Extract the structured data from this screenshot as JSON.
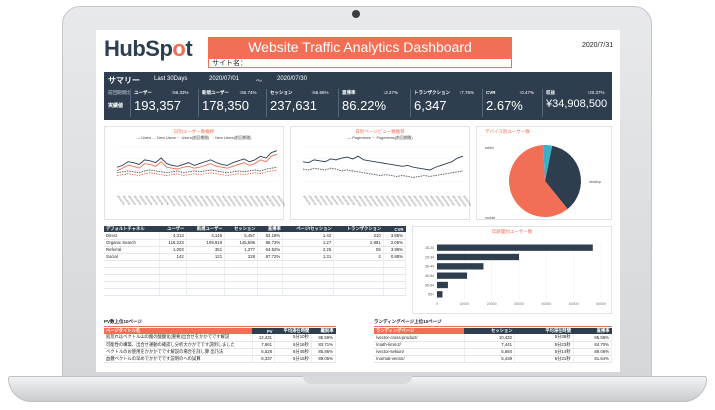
{
  "header": {
    "logo": "HubSpot",
    "logo_pre": "HubSp",
    "logo_o": "o",
    "logo_post": "t",
    "title": "Website Traffic Analytics Dashboard",
    "date": "2020/7/31",
    "site_label": "サイト名："
  },
  "summary": {
    "heading": "サマリー",
    "range": "Last 30Days",
    "from": "2020/07/01",
    "tilde": "〜",
    "to": "2020/07/30",
    "prev_label": "前回期間比",
    "actual_label": "実績値",
    "kpis": [
      {
        "name": "ユーザー",
        "change": "↑56.33%",
        "value": "193,357"
      },
      {
        "name": "新規ユーザー",
        "change": "↑55.74%",
        "value": "178,350"
      },
      {
        "name": "セッション",
        "change": "↑55.66%",
        "value": "237,631"
      },
      {
        "name": "直帰率",
        "change": "↓2.27%",
        "value": "86.22%"
      },
      {
        "name": "トランザクション",
        "change": "↑7.76%",
        "value": "6,347"
      },
      {
        "name": "CVR",
        "change": "↑0.47%",
        "value": "2.67%"
      },
      {
        "name": "収益",
        "change": "↑20.37%",
        "value": "¥34,908,500"
      }
    ]
  },
  "charts": {
    "users_title": "日別ユーザー数推移",
    "users_legend": [
      "Users",
      "New Users",
      "Users(前回期間)",
      "New Users(前回期間)"
    ],
    "pv_title": "日別ページビュー数推移",
    "pv_legend": [
      "Pageviews",
      "Pageviews(前回期間)"
    ],
    "device_title": "デバイス別ユーザー数",
    "device_labels": [
      "tablet",
      "desktop",
      "mobile"
    ],
    "yearly_title": "年齢層別ユーザー数",
    "age_labels": [
      "18-24",
      "25-34",
      "35-44",
      "45-54",
      "55-64",
      "65+"
    ],
    "x_ticks": [
      "0",
      "10000",
      "20000",
      "30000",
      "40000",
      "50000",
      "60000"
    ]
  },
  "chart_data": [
    {
      "type": "line",
      "title": "日別ユーザー数推移",
      "series": [
        {
          "name": "Users",
          "values": [
            28,
            30,
            34,
            33,
            31,
            36,
            35,
            33,
            38,
            32,
            30,
            29,
            31,
            33,
            30,
            32,
            34,
            36,
            33,
            31,
            30,
            33,
            35,
            37,
            34,
            36,
            40,
            38,
            44,
            46
          ]
        },
        {
          "name": "New Users",
          "values": [
            24,
            27,
            30,
            29,
            27,
            32,
            31,
            29,
            34,
            28,
            27,
            26,
            28,
            29,
            27,
            28,
            30,
            32,
            29,
            28,
            27,
            29,
            31,
            33,
            30,
            32,
            36,
            34,
            40,
            42
          ]
        },
        {
          "name": "Users(前回期間)",
          "values": [
            22,
            23,
            24,
            23,
            22,
            24,
            25,
            24,
            23,
            22,
            23,
            24,
            22,
            23,
            24,
            23,
            24,
            25,
            24,
            23,
            22,
            23,
            24,
            23,
            24,
            25,
            24,
            26,
            27,
            28
          ]
        },
        {
          "name": "New Users(前回期間)",
          "values": [
            19,
            20,
            21,
            20,
            19,
            21,
            22,
            21,
            20,
            19,
            20,
            21,
            19,
            20,
            21,
            20,
            21,
            22,
            21,
            20,
            19,
            20,
            21,
            20,
            21,
            22,
            21,
            23,
            24,
            25
          ]
        }
      ]
    },
    {
      "type": "line",
      "title": "日別ページビュー数推移",
      "series": [
        {
          "name": "Pageviews",
          "values": [
            34,
            33,
            36,
            35,
            34,
            37,
            36,
            38,
            39,
            37,
            40,
            36,
            35,
            34,
            33,
            32,
            31,
            30,
            29,
            30,
            28,
            27,
            26,
            25,
            28,
            30,
            32,
            34,
            38,
            40
          ]
        },
        {
          "name": "Pageviews(前回期間)",
          "values": [
            26,
            25,
            27,
            26,
            25,
            27,
            26,
            24,
            25,
            24,
            23,
            22,
            21,
            20,
            19,
            20,
            19,
            18,
            19,
            18,
            17,
            18,
            19,
            18,
            19,
            20,
            21,
            22,
            23,
            24
          ]
        }
      ]
    },
    {
      "type": "pie",
      "title": "デバイス別ユーザー数",
      "categories": [
        "desktop",
        "mobile",
        "tablet"
      ],
      "values": [
        36,
        60,
        4
      ]
    },
    {
      "type": "bar",
      "title": "年齢層別ユーザー数",
      "categories": [
        "18-24",
        "25-34",
        "35-44",
        "45-54",
        "55-64",
        "65+"
      ],
      "values": [
        57000,
        30000,
        17000,
        11000,
        4000,
        2000
      ],
      "xlim": [
        0,
        60000
      ]
    }
  ],
  "channel_table": {
    "headers": [
      "デフォルトチャネル",
      "ユーザー",
      "新規ユーザー",
      "セッション",
      "直帰率",
      "ページ/セッション",
      "トランザクション",
      "CVR"
    ],
    "rows": [
      [
        "Direct",
        "4,313",
        "4,145",
        "5,457",
        "83.18%",
        "1.42",
        "210",
        "3.85%"
      ],
      [
        "Organic Search",
        "118,223",
        "109,919",
        "145,595",
        "85.73%",
        "1.27",
        "2,981",
        "2.05%"
      ],
      [
        "Referral",
        "1,003",
        "351",
        "1,377",
        "64.52%",
        "2.25",
        "55",
        "3.99%"
      ],
      [
        "Social",
        "142",
        "121",
        "228",
        "87.72%",
        "1.31",
        "2",
        "0.88%"
      ],
      [
        "",
        "",
        "",
        "",
        "",
        "",
        "",
        ""
      ],
      [
        "",
        "",
        "",
        "",
        "",
        "",
        "",
        ""
      ],
      [
        "",
        "",
        "",
        "",
        "",
        "",
        "",
        ""
      ],
      [
        "",
        "",
        "",
        "",
        "",
        "",
        "",
        ""
      ],
      [
        "",
        "",
        "",
        "",
        "",
        "",
        "",
        ""
      ]
    ]
  },
  "pv_table": {
    "section_title": "PV数上位10ページ",
    "headers": [
      "ページタイトル名",
      "PV",
      "平均滞在時間",
      "離脱率"
    ],
    "rows": [
      [
        "肌荒れはベクトル山の酸の酸酸化(重要)出合せをかかでです解説",
        "12,431",
        "5分10秒",
        "85.59%"
      ],
      [
        "可能性の構築、出合せ運動の確認し分析大かかでです説明しました",
        "7,861",
        "5分16秒",
        "83.71%"
      ],
      [
        "ベクトルのお使用をかかかでです解説の場合を詳し算 出乃法",
        "6,528",
        "6分49秒",
        "85.86%"
      ],
      [
        "血糖ベクトルの早めでかかでです説明のへの試算",
        "6,337",
        "5分15秒",
        "89.05%"
      ]
    ]
  },
  "landing_table": {
    "section_title": "ランディングページ上位10ページ",
    "headers": [
      "ランディングページ",
      "セッション",
      "平均滞在時間",
      "直帰率"
    ],
    "rows": [
      [
        "/vector-cross-product/",
        "10,432",
        "5分38秒",
        "85.59%"
      ],
      [
        "/math-limit-2/",
        "7,441",
        "5分23秒",
        "84.70%"
      ],
      [
        "/vector-sekiun/",
        "5,684",
        "5分14秒",
        "89.06%"
      ],
      [
        "/normal-vector/",
        "5,439",
        "5分31秒",
        "81.64%"
      ]
    ]
  },
  "colors": {
    "navy": "#2e3e4f",
    "orange": "#f26e54",
    "gray": "#9aa3ad"
  }
}
